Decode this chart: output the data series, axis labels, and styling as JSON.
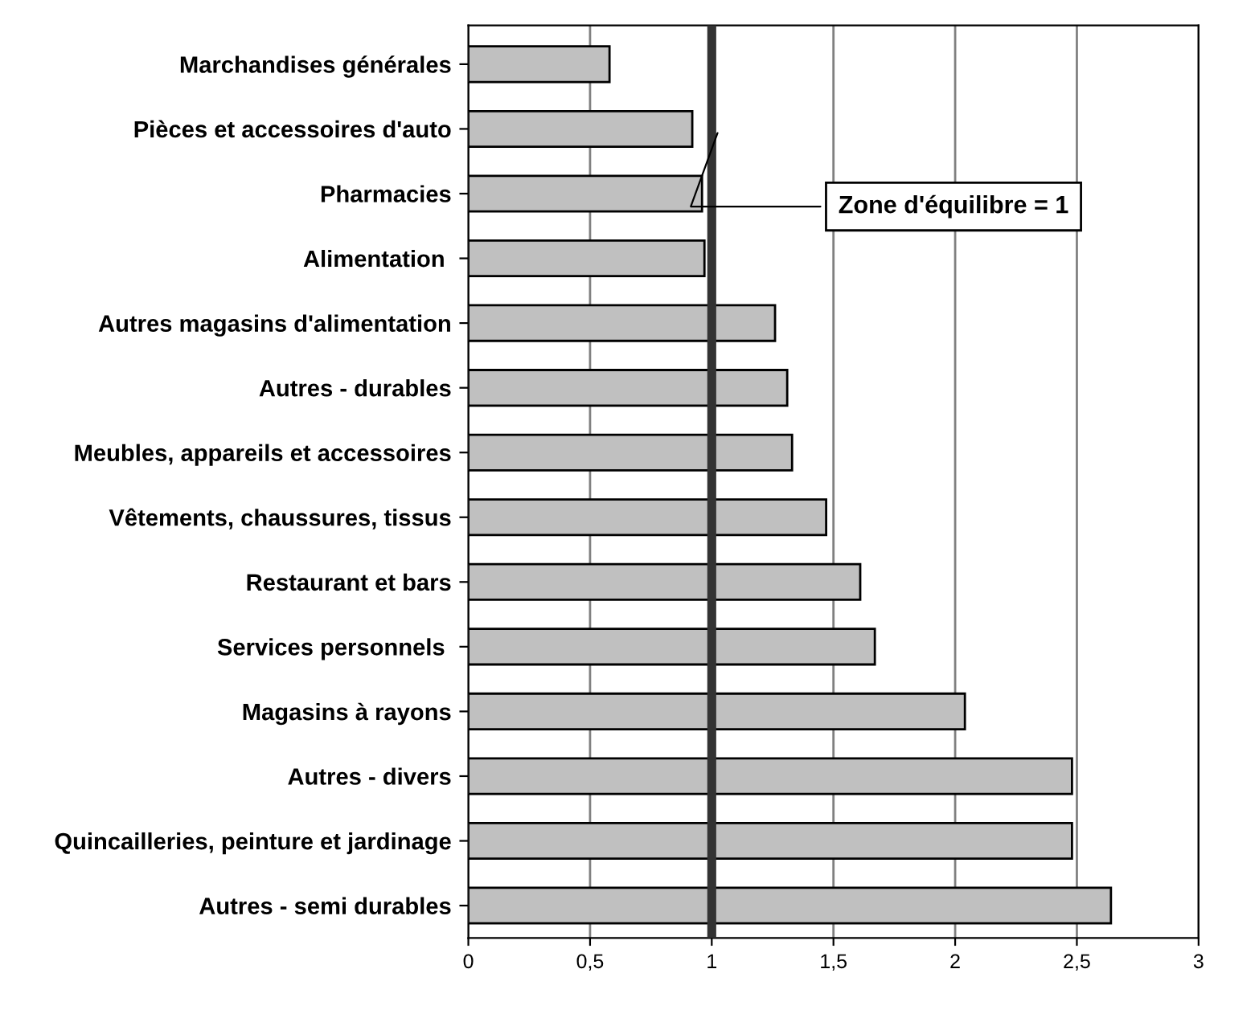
{
  "chart_data": {
    "type": "bar",
    "orientation": "horizontal",
    "categories": [
      "Marchandises générales",
      "Pièces et accessoires d'auto",
      "Pharmacies",
      "Alimentation ",
      "Autres magasins d'alimentation",
      "Autres - durables",
      "Meubles, appareils et accessoires",
      "Vêtements, chaussures, tissus",
      "Restaurant et bars",
      "Services personnels ",
      "Magasins à rayons",
      "Autres - divers",
      "Quincailleries, peinture et jardinage",
      "Autres - semi durables"
    ],
    "values": [
      0.58,
      0.92,
      0.96,
      0.97,
      1.26,
      1.31,
      1.33,
      1.47,
      1.61,
      1.67,
      2.04,
      2.48,
      2.48,
      2.64
    ],
    "color": "#c0c0c0",
    "xlim": [
      0,
      3
    ],
    "xticks": [
      0,
      {
        "value": 0.5,
        "label": "0,5"
      },
      1,
      {
        "value": 1.5,
        "label": "1,5"
      },
      2,
      {
        "value": 2.5,
        "label": "2,5"
      },
      3
    ],
    "grid": "x",
    "ref_lines": [
      {
        "axis": "x",
        "value": 1,
        "label": "Zone d'équilibre = 1",
        "color": "#333333"
      }
    ]
  }
}
